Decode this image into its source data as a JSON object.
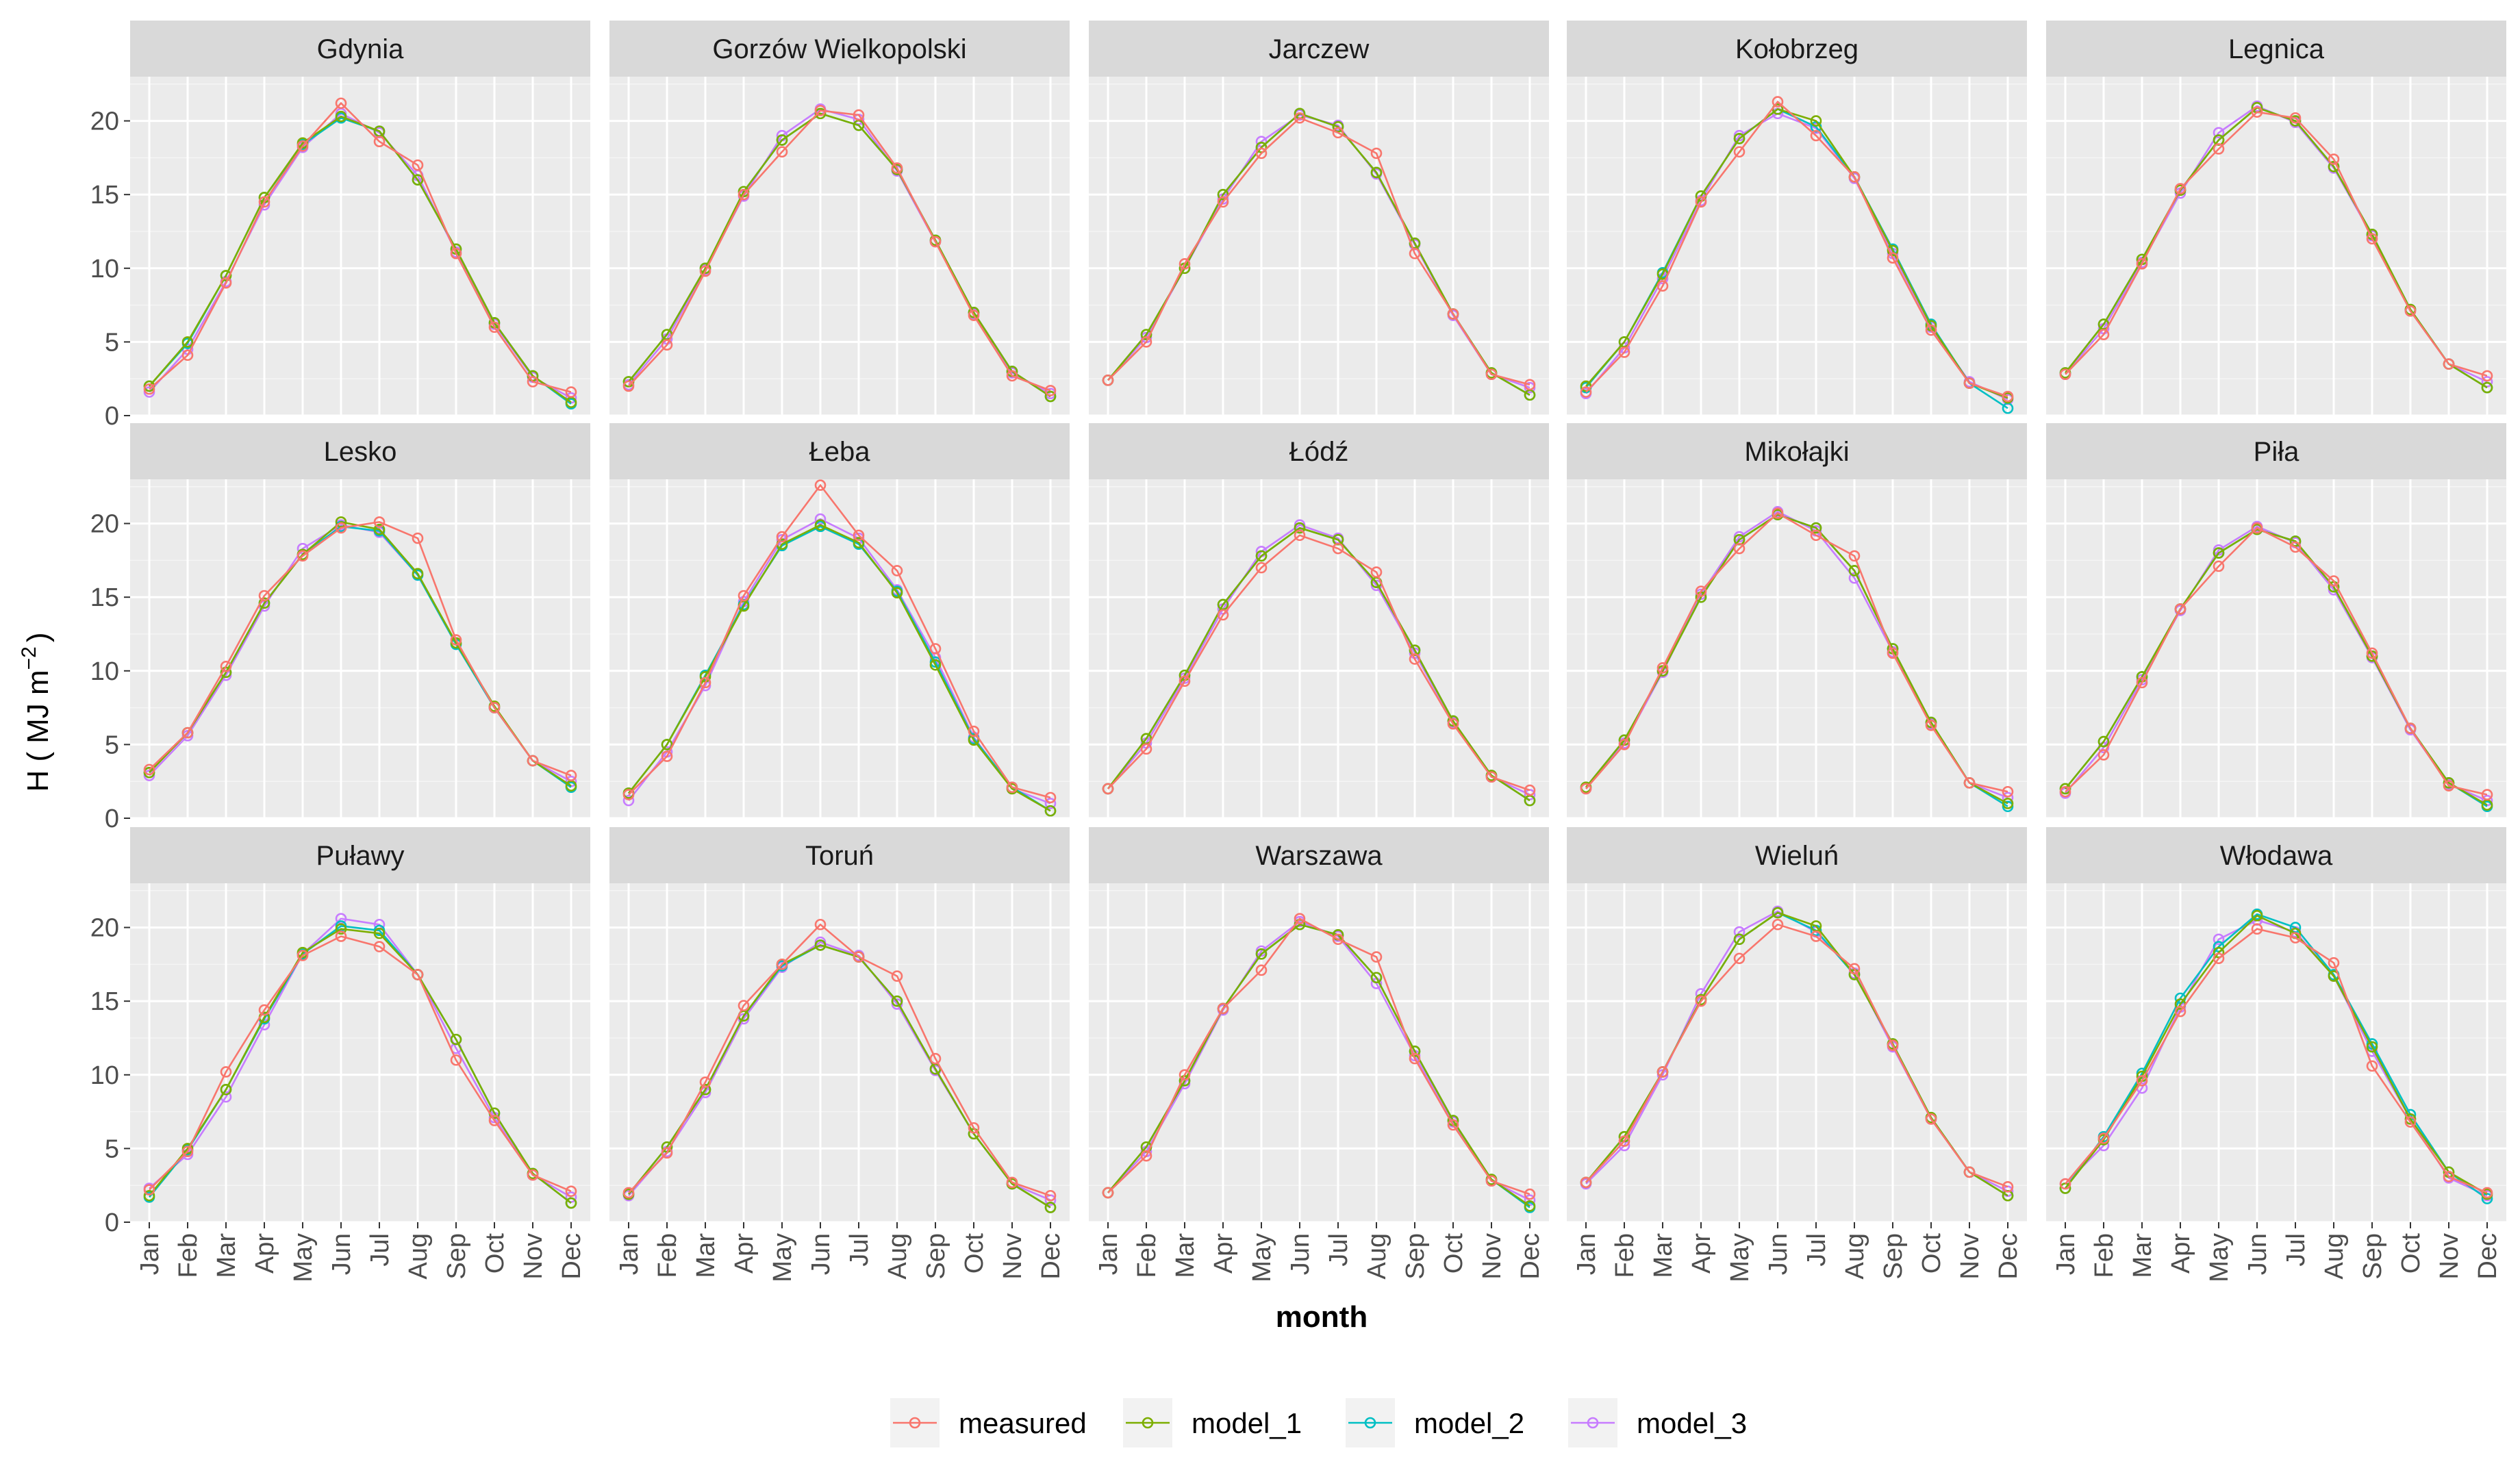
{
  "chart_data": {
    "type": "line",
    "facet_by": "station",
    "xlabel": "month",
    "ylabel_prefix": "H (",
    "ylabel_unit": "MJ m",
    "ylabel_exp": "−2",
    "ylabel_suffix": ")",
    "ylim": [
      0,
      23
    ],
    "yticks": [
      0,
      5,
      10,
      15,
      20
    ],
    "ytick_labels": [
      "0",
      "5",
      "10",
      "15",
      "20"
    ],
    "months": [
      "Jan",
      "Feb",
      "Mar",
      "Apr",
      "May",
      "Jun",
      "Jul",
      "Aug",
      "Sep",
      "Oct",
      "Nov",
      "Dec"
    ],
    "legend_position": "bottom",
    "legend": [
      {
        "name": "measured",
        "color": "#F8766D"
      },
      {
        "name": "model_1",
        "color": "#7CAE00"
      },
      {
        "name": "model_2",
        "color": "#00BFC4"
      },
      {
        "name": "model_3",
        "color": "#C77CFF"
      }
    ],
    "panels": [
      {
        "station": "Gdynia",
        "series": {
          "measured": [
            1.8,
            4.1,
            9.0,
            14.5,
            18.3,
            21.2,
            18.6,
            17.0,
            11.0,
            6.0,
            2.3,
            1.6
          ],
          "model_1": [
            2.0,
            5.0,
            9.5,
            14.8,
            18.5,
            20.3,
            19.3,
            16.0,
            11.3,
            6.3,
            2.7,
            0.9
          ],
          "model_2": [
            2.0,
            4.9,
            9.5,
            14.8,
            18.4,
            20.2,
            19.3,
            16.0,
            11.3,
            6.3,
            2.7,
            0.8
          ],
          "model_3": [
            1.6,
            4.5,
            9.1,
            14.3,
            18.2,
            20.5,
            19.2,
            16.3,
            11.1,
            6.2,
            2.6,
            1.2
          ]
        }
      },
      {
        "station": "Gorzów Wielkopolski",
        "series": {
          "measured": [
            2.0,
            4.8,
            9.8,
            15.0,
            17.9,
            20.7,
            20.4,
            16.8,
            11.8,
            6.8,
            2.7,
            1.7
          ],
          "model_1": [
            2.3,
            5.5,
            10.0,
            15.2,
            18.7,
            20.5,
            19.7,
            16.7,
            11.9,
            7.0,
            3.0,
            1.3
          ],
          "model_2": [
            2.3,
            5.5,
            10.0,
            15.2,
            18.7,
            20.5,
            19.7,
            16.7,
            11.9,
            7.0,
            3.0,
            1.3
          ],
          "model_3": [
            2.1,
            5.2,
            9.9,
            14.9,
            19.0,
            20.8,
            20.1,
            16.6,
            11.8,
            6.9,
            2.9,
            1.5
          ]
        }
      },
      {
        "station": "Jarczew",
        "series": {
          "measured": [
            2.4,
            5.0,
            10.3,
            14.5,
            17.8,
            20.2,
            19.2,
            17.8,
            11.0,
            6.9,
            2.8,
            2.1
          ],
          "model_1": [
            2.4,
            5.5,
            10.0,
            15.0,
            18.2,
            20.5,
            19.6,
            16.5,
            11.7,
            6.9,
            2.9,
            1.4
          ],
          "model_2": [
            2.4,
            5.5,
            10.0,
            15.0,
            18.2,
            20.5,
            19.6,
            16.5,
            11.7,
            6.9,
            2.9,
            1.4
          ],
          "model_3": [
            2.4,
            5.3,
            10.0,
            14.7,
            18.6,
            20.4,
            19.7,
            16.4,
            11.6,
            6.8,
            2.8,
            1.9
          ]
        }
      },
      {
        "station": "Kołobrzeg",
        "series": {
          "measured": [
            1.6,
            4.3,
            8.8,
            14.5,
            17.9,
            21.3,
            19.0,
            16.2,
            10.7,
            5.8,
            2.2,
            1.3
          ],
          "model_1": [
            2.0,
            5.0,
            9.6,
            14.9,
            18.8,
            20.8,
            20.0,
            16.2,
            11.2,
            6.1,
            2.2,
            1.2
          ],
          "model_2": [
            1.9,
            5.0,
            9.7,
            14.9,
            18.8,
            20.8,
            19.6,
            16.2,
            11.3,
            6.2,
            2.2,
            0.5
          ],
          "model_3": [
            1.5,
            4.6,
            9.3,
            14.6,
            19.0,
            20.5,
            19.5,
            16.1,
            11.0,
            6.0,
            2.3,
            1.1
          ]
        }
      },
      {
        "station": "Legnica",
        "series": {
          "measured": [
            2.8,
            5.5,
            10.3,
            15.4,
            18.1,
            20.6,
            20.2,
            17.4,
            12.0,
            7.1,
            3.5,
            2.7
          ],
          "model_1": [
            2.9,
            6.2,
            10.6,
            15.3,
            18.7,
            20.9,
            20.0,
            16.9,
            12.3,
            7.2,
            3.5,
            1.9
          ],
          "model_2": [
            2.9,
            6.2,
            10.6,
            15.3,
            18.7,
            20.9,
            20.0,
            16.9,
            12.3,
            7.2,
            3.5,
            1.9
          ],
          "model_3": [
            2.8,
            5.9,
            10.4,
            15.1,
            19.2,
            21.0,
            19.9,
            16.8,
            12.2,
            7.1,
            3.5,
            2.3
          ]
        }
      },
      {
        "station": "Lesko",
        "series": {
          "measured": [
            3.3,
            5.8,
            10.3,
            15.1,
            17.8,
            19.7,
            20.1,
            19.0,
            12.1,
            7.5,
            3.9,
            2.9
          ],
          "model_1": [
            3.1,
            5.8,
            9.9,
            14.6,
            17.9,
            20.1,
            19.6,
            16.6,
            11.9,
            7.6,
            3.9,
            2.2
          ],
          "model_2": [
            3.1,
            5.8,
            9.9,
            14.6,
            17.9,
            19.8,
            19.5,
            16.5,
            11.8,
            7.5,
            3.9,
            2.1
          ],
          "model_3": [
            2.9,
            5.6,
            9.7,
            14.4,
            18.3,
            19.9,
            19.4,
            16.5,
            11.8,
            7.5,
            3.9,
            2.5
          ]
        }
      },
      {
        "station": "Łeba",
        "series": {
          "measured": [
            1.6,
            4.2,
            9.2,
            15.1,
            19.1,
            22.6,
            19.2,
            16.8,
            11.5,
            5.9,
            2.1,
            1.4
          ],
          "model_1": [
            1.7,
            5.0,
            9.6,
            14.4,
            18.6,
            19.9,
            18.7,
            15.3,
            10.4,
            5.3,
            2.0,
            0.5
          ],
          "model_2": [
            1.7,
            5.0,
            9.7,
            14.5,
            18.5,
            19.8,
            18.6,
            15.4,
            10.6,
            5.4,
            2.1,
            0.5
          ],
          "model_3": [
            1.2,
            4.5,
            9.0,
            14.7,
            18.9,
            20.3,
            19.0,
            15.5,
            10.9,
            5.5,
            2.0,
            1.0
          ]
        }
      },
      {
        "station": "Łódź",
        "series": {
          "measured": [
            2.0,
            4.7,
            9.3,
            13.8,
            17.0,
            19.2,
            18.3,
            16.7,
            10.8,
            6.4,
            2.8,
            1.9
          ],
          "model_1": [
            2.0,
            5.4,
            9.7,
            14.5,
            17.8,
            19.7,
            18.9,
            16.0,
            11.4,
            6.6,
            2.9,
            1.2
          ],
          "model_2": [
            2.0,
            5.4,
            9.7,
            14.5,
            17.8,
            19.7,
            18.9,
            16.0,
            11.4,
            6.6,
            2.9,
            1.2
          ],
          "model_3": [
            2.0,
            5.1,
            9.5,
            14.2,
            18.1,
            19.9,
            19.0,
            15.8,
            11.2,
            6.5,
            2.8,
            1.6
          ]
        }
      },
      {
        "station": "Mikołajki",
        "series": {
          "measured": [
            2.0,
            5.0,
            10.2,
            15.4,
            18.3,
            20.7,
            19.2,
            17.8,
            11.2,
            6.3,
            2.4,
            1.8
          ],
          "model_1": [
            2.1,
            5.3,
            10.0,
            15.0,
            18.9,
            20.6,
            19.7,
            16.8,
            11.5,
            6.5,
            2.4,
            1.0
          ],
          "model_2": [
            2.1,
            5.3,
            10.0,
            15.0,
            18.9,
            20.6,
            19.7,
            16.8,
            11.5,
            6.5,
            2.4,
            0.8
          ],
          "model_3": [
            2.0,
            5.1,
            9.9,
            15.2,
            19.1,
            20.8,
            19.5,
            16.3,
            11.3,
            6.4,
            2.4,
            1.4
          ]
        }
      },
      {
        "station": "Piła",
        "series": {
          "measured": [
            1.8,
            4.3,
            9.2,
            14.2,
            17.1,
            19.7,
            18.4,
            16.1,
            11.2,
            6.1,
            2.2,
            1.6
          ],
          "model_1": [
            2.0,
            5.2,
            9.6,
            14.2,
            18.0,
            19.6,
            18.8,
            15.7,
            11.0,
            6.1,
            2.4,
            0.9
          ],
          "model_2": [
            2.0,
            5.2,
            9.6,
            14.2,
            18.0,
            19.6,
            18.8,
            15.7,
            11.0,
            6.1,
            2.4,
            0.8
          ],
          "model_3": [
            1.7,
            4.8,
            9.4,
            14.1,
            18.2,
            19.8,
            18.7,
            15.5,
            10.9,
            6.0,
            2.3,
            1.2
          ]
        }
      },
      {
        "station": "Puławy",
        "series": {
          "measured": [
            2.2,
            4.8,
            10.2,
            14.4,
            18.1,
            19.4,
            18.7,
            16.8,
            11.0,
            6.9,
            3.2,
            2.1
          ],
          "model_1": [
            1.8,
            5.0,
            9.0,
            13.9,
            18.3,
            19.9,
            19.6,
            16.8,
            12.4,
            7.4,
            3.3,
            1.3
          ],
          "model_2": [
            1.7,
            4.9,
            9.0,
            13.8,
            18.2,
            20.1,
            19.8,
            16.8,
            12.4,
            7.4,
            3.3,
            1.3
          ],
          "model_3": [
            2.3,
            4.6,
            8.5,
            13.4,
            18.2,
            20.6,
            20.2,
            16.8,
            11.8,
            7.1,
            3.2,
            1.7
          ]
        }
      },
      {
        "station": "Toruń",
        "series": {
          "measured": [
            2.0,
            4.7,
            9.5,
            14.7,
            17.5,
            20.2,
            18.0,
            16.7,
            11.1,
            6.4,
            2.7,
            1.8
          ],
          "model_1": [
            1.9,
            5.1,
            9.0,
            14.0,
            17.5,
            18.8,
            18.0,
            15.0,
            10.4,
            6.0,
            2.6,
            1.0
          ],
          "model_2": [
            1.9,
            5.1,
            9.0,
            14.0,
            17.4,
            18.8,
            18.0,
            15.0,
            10.4,
            6.0,
            2.6,
            1.0
          ],
          "model_3": [
            1.8,
            4.8,
            8.8,
            13.8,
            17.3,
            19.0,
            18.1,
            14.8,
            10.3,
            6.0,
            2.6,
            1.5
          ]
        }
      },
      {
        "station": "Warszawa",
        "series": {
          "measured": [
            2.0,
            4.5,
            10.0,
            14.5,
            17.1,
            20.6,
            19.2,
            18.0,
            11.1,
            6.6,
            2.8,
            1.9
          ],
          "model_1": [
            2.0,
            5.1,
            9.6,
            14.5,
            18.2,
            20.2,
            19.5,
            16.6,
            11.6,
            6.9,
            2.9,
            1.1
          ],
          "model_2": [
            2.0,
            5.1,
            9.6,
            14.5,
            18.2,
            20.2,
            19.5,
            16.6,
            11.6,
            6.9,
            2.9,
            1.0
          ],
          "model_3": [
            2.0,
            4.8,
            9.4,
            14.4,
            18.4,
            20.4,
            19.4,
            16.2,
            11.3,
            6.8,
            2.8,
            1.5
          ]
        }
      },
      {
        "station": "Wieluń",
        "series": {
          "measured": [
            2.7,
            5.5,
            10.2,
            15.0,
            17.9,
            20.2,
            19.4,
            17.2,
            12.0,
            7.0,
            3.4,
            2.4
          ],
          "model_1": [
            2.7,
            5.8,
            10.2,
            15.1,
            19.2,
            21.0,
            20.1,
            16.8,
            12.1,
            7.1,
            3.4,
            1.8
          ],
          "model_2": [
            2.7,
            5.8,
            10.2,
            15.1,
            19.2,
            21.0,
            19.8,
            16.8,
            12.1,
            7.1,
            3.4,
            1.8
          ],
          "model_3": [
            2.6,
            5.2,
            10.0,
            15.5,
            19.7,
            21.1,
            19.7,
            16.9,
            11.9,
            7.0,
            3.4,
            2.1
          ]
        }
      },
      {
        "station": "Włodawa",
        "series": {
          "measured": [
            2.6,
            5.7,
            9.6,
            14.3,
            17.9,
            19.9,
            19.3,
            17.6,
            10.6,
            6.8,
            3.1,
            2.0
          ],
          "model_1": [
            2.3,
            5.6,
            9.9,
            14.8,
            18.3,
            20.8,
            19.6,
            16.7,
            11.9,
            7.0,
            3.4,
            1.9
          ],
          "model_2": [
            2.3,
            5.8,
            10.1,
            15.2,
            18.7,
            20.9,
            20.0,
            16.8,
            12.1,
            7.3,
            3.4,
            1.6
          ],
          "model_3": [
            2.6,
            5.2,
            9.1,
            14.6,
            19.2,
            20.5,
            19.7,
            16.7,
            11.6,
            7.0,
            3.0,
            1.8
          ]
        }
      }
    ]
  }
}
